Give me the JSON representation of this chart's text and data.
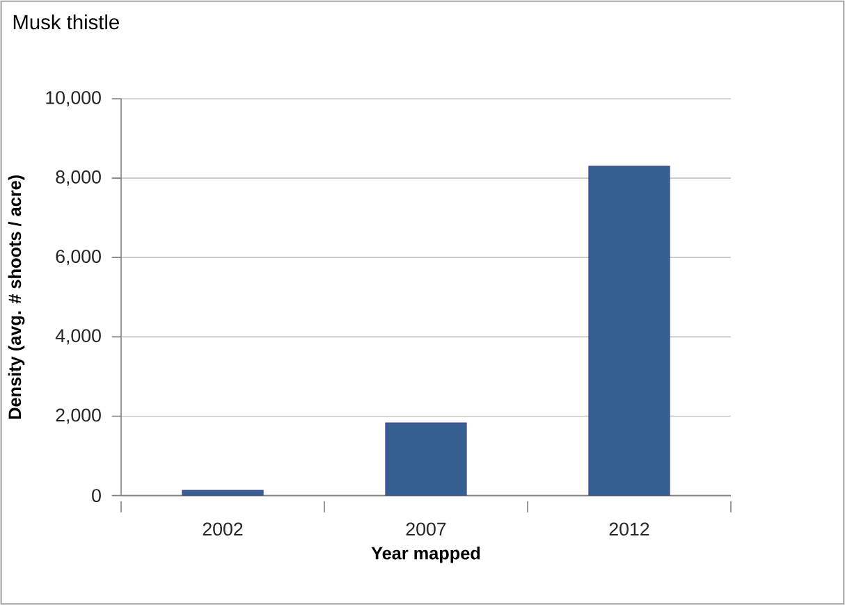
{
  "chart_data": {
    "type": "bar",
    "title": "Musk thistle",
    "xlabel": "Year mapped",
    "ylabel": "Density (avg. # shoots / acre)",
    "categories": [
      "2002",
      "2007",
      "2012"
    ],
    "values": [
      130,
      1830,
      8300
    ],
    "color": "#355f91",
    "ylim": [
      0,
      10000
    ],
    "yticks": [
      {
        "value": 0,
        "label": "0"
      },
      {
        "value": 2000,
        "label": "2,000"
      },
      {
        "value": 4000,
        "label": "4,000"
      },
      {
        "value": 6000,
        "label": "6,000"
      },
      {
        "value": 8000,
        "label": "8,000"
      },
      {
        "value": 10000,
        "label": "10,000"
      }
    ],
    "grid": "y"
  }
}
